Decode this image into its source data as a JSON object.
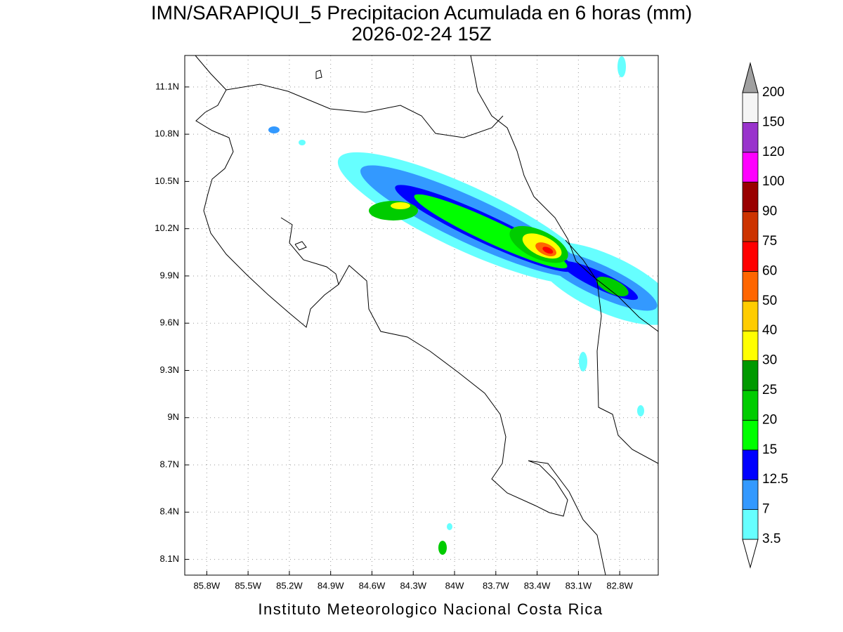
{
  "title": "IMN/SARAPIQUI_5 Precipitacion Acumulada en 6 horas (mm)",
  "subtitle": "2026-02-24 15Z",
  "footer": "Instituto Meteorologico Nacional Costa Rica",
  "map": {
    "xlim": [
      -85.96,
      -82.52
    ],
    "ylim": [
      8.0,
      11.3
    ],
    "grid": true,
    "xticks": [
      {
        "value": -85.8,
        "label": "85.8W"
      },
      {
        "value": -85.5,
        "label": "85.5W"
      },
      {
        "value": -85.2,
        "label": "85.2W"
      },
      {
        "value": -84.9,
        "label": "84.9W"
      },
      {
        "value": -84.6,
        "label": "84.6W"
      },
      {
        "value": -84.3,
        "label": "84.3W"
      },
      {
        "value": -84.0,
        "label": "84W"
      },
      {
        "value": -83.7,
        "label": "83.7W"
      },
      {
        "value": -83.4,
        "label": "83.4W"
      },
      {
        "value": -83.1,
        "label": "83.1W"
      },
      {
        "value": -82.8,
        "label": "82.8W"
      }
    ],
    "yticks": [
      {
        "value": 8.1,
        "label": "8.1N"
      },
      {
        "value": 8.4,
        "label": "8.4N"
      },
      {
        "value": 8.7,
        "label": "8.7N"
      },
      {
        "value": 9.0,
        "label": "9N"
      },
      {
        "value": 9.3,
        "label": "9.3N"
      },
      {
        "value": 9.6,
        "label": "9.6N"
      },
      {
        "value": 9.9,
        "label": "9.9N"
      },
      {
        "value": 10.2,
        "label": "10.2N"
      },
      {
        "value": 10.5,
        "label": "10.5N"
      },
      {
        "value": 10.8,
        "label": "10.8N"
      },
      {
        "value": 11.1,
        "label": "11.1N"
      }
    ]
  },
  "colorbar": {
    "levels": [
      3.5,
      7,
      12.5,
      15,
      20,
      25,
      30,
      40,
      50,
      60,
      75,
      90,
      100,
      120,
      150,
      200
    ],
    "colors": [
      "#66ffff",
      "#3399ff",
      "#0000ff",
      "#00ff00",
      "#00cc00",
      "#009900",
      "#ffff00",
      "#ffcc00",
      "#ff6600",
      "#ff0000",
      "#cc3300",
      "#990000",
      "#ff00ff",
      "#9933cc",
      "#f5f5f5"
    ],
    "under_color": "#ffffff",
    "over_color": "#a0a0a0"
  }
}
